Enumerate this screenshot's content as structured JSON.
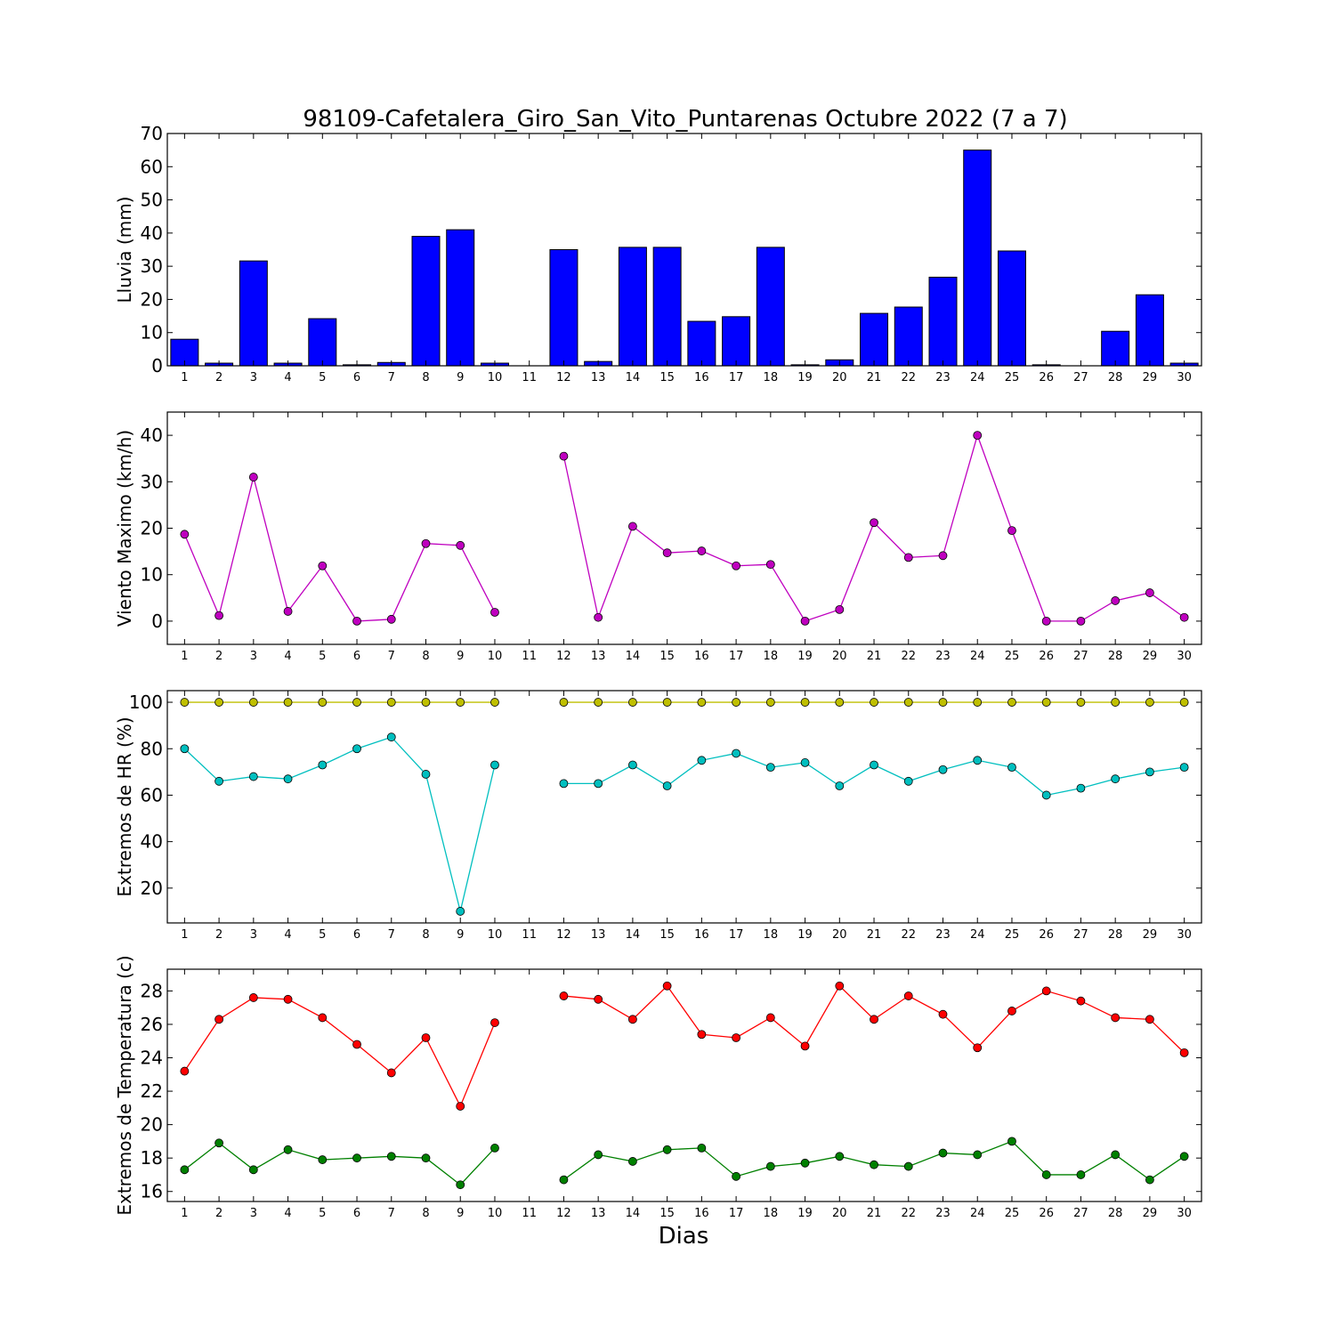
{
  "chart_data": {
    "title": "98109-Cafetalera_Giro_San_Vito_Puntarenas Octubre 2022  (7 a 7)",
    "xlabel": "Dias",
    "days": [
      1,
      2,
      3,
      4,
      5,
      6,
      7,
      8,
      9,
      10,
      11,
      12,
      13,
      14,
      15,
      16,
      17,
      18,
      19,
      20,
      21,
      22,
      23,
      24,
      25,
      26,
      27,
      28,
      29,
      30
    ],
    "panels": [
      {
        "type": "bar",
        "ylabel": "Lluvia (mm)",
        "ylim": [
          0,
          70
        ],
        "yticks": [
          0,
          10,
          20,
          30,
          40,
          50,
          60,
          70
        ],
        "series": [
          {
            "color": "#0000ff",
            "values": [
              8.0,
              0.8,
              31.6,
              0.8,
              14.2,
              0.3,
              1.0,
              39.0,
              41.0,
              0.8,
              0.0,
              35.0,
              1.3,
              35.7,
              35.7,
              13.4,
              14.8,
              35.7,
              0.3,
              1.8,
              15.8,
              17.7,
              26.7,
              65.0,
              34.6,
              0.3,
              0.0,
              10.4,
              21.4,
              0.8
            ]
          }
        ]
      },
      {
        "type": "line",
        "ylabel": "Viento Maximo (km/h)",
        "ylim": [
          -5,
          45
        ],
        "yticks": [
          0,
          10,
          20,
          30,
          40
        ],
        "series": [
          {
            "color": "#bf00bf",
            "values": [
              18.7,
              1.2,
              31.0,
              2.1,
              11.9,
              0.0,
              0.4,
              16.7,
              16.3,
              1.9,
              null,
              35.5,
              0.8,
              20.4,
              14.7,
              15.1,
              11.9,
              12.2,
              0.0,
              2.5,
              21.2,
              13.7,
              14.1,
              40.0,
              19.5,
              0.0,
              0.0,
              4.4,
              6.1,
              0.8
            ]
          }
        ]
      },
      {
        "type": "line",
        "ylabel": "Extremos de HR (%)",
        "ylim": [
          5,
          105
        ],
        "yticks": [
          20,
          40,
          60,
          80,
          100
        ],
        "series": [
          {
            "color": "#bfbf00",
            "values": [
              100,
              100,
              100,
              100,
              100,
              100,
              100,
              100,
              100,
              100,
              null,
              100,
              100,
              100,
              100,
              100,
              100,
              100,
              100,
              100,
              100,
              100,
              100,
              100,
              100,
              100,
              100,
              100,
              100,
              100
            ]
          },
          {
            "color": "#00bfbf",
            "values": [
              80,
              66,
              68,
              67,
              73,
              80,
              85,
              69,
              10,
              73,
              null,
              65,
              65,
              73,
              64,
              75,
              78,
              72,
              74,
              64,
              73,
              66,
              71,
              75,
              72,
              60,
              63,
              67,
              70,
              72
            ]
          }
        ]
      },
      {
        "type": "line",
        "ylabel": "Extremos de Temperatura (c)",
        "ylim": [
          15.4,
          29.3
        ],
        "yticks": [
          16,
          18,
          20,
          22,
          24,
          26,
          28
        ],
        "series": [
          {
            "color": "#ff0000",
            "values": [
              23.2,
              26.3,
              27.6,
              27.5,
              26.4,
              24.8,
              23.1,
              25.2,
              21.1,
              26.1,
              null,
              27.7,
              27.5,
              26.3,
              28.3,
              25.4,
              25.2,
              26.4,
              24.7,
              28.3,
              26.3,
              27.7,
              26.6,
              24.6,
              26.8,
              28.0,
              27.4,
              26.4,
              26.3,
              24.3
            ]
          },
          {
            "color": "#008000",
            "values": [
              17.3,
              18.9,
              17.3,
              18.5,
              17.9,
              18.0,
              18.1,
              18.0,
              16.4,
              18.6,
              null,
              16.7,
              18.2,
              17.8,
              18.5,
              18.6,
              16.9,
              17.5,
              17.7,
              18.1,
              17.6,
              17.5,
              18.3,
              18.2,
              19.0,
              17.0,
              17.0,
              18.2,
              16.7,
              18.1
            ]
          }
        ]
      }
    ]
  }
}
